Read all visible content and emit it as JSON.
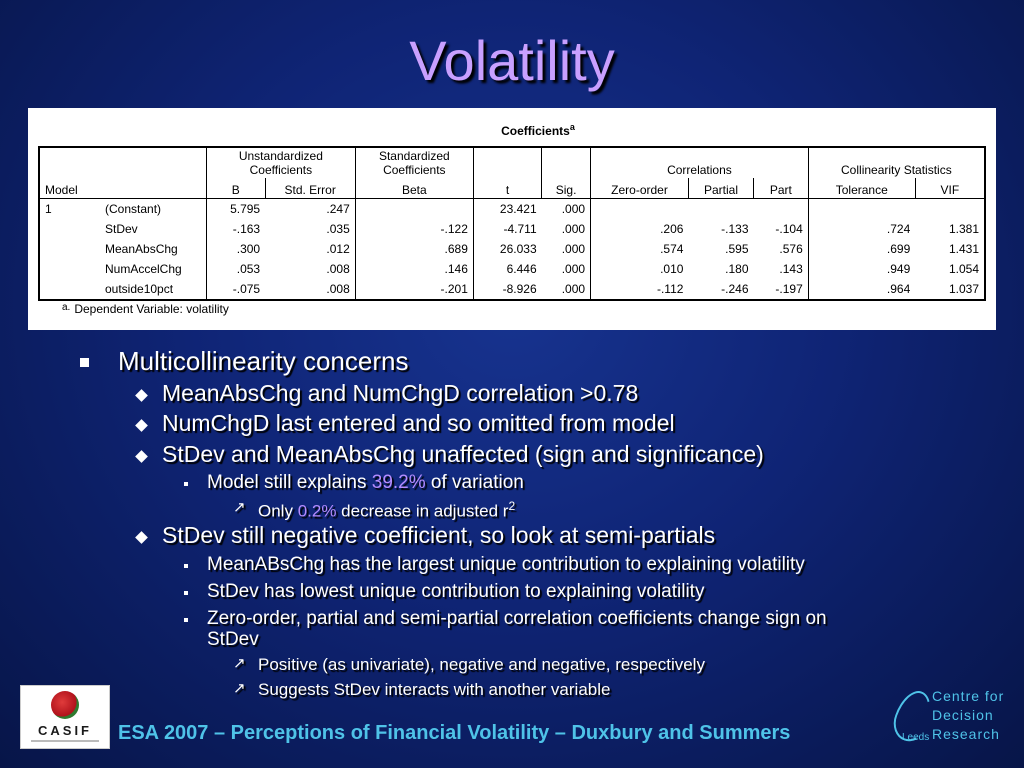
{
  "slide": {
    "title": "Volatility"
  },
  "table": {
    "caption": "Coefficients",
    "caption_sup": "a",
    "group_headers": {
      "unstandardized": [
        "Unstandardized",
        "Coefficients"
      ],
      "standardized": [
        "Standardized",
        "Coefficients"
      ],
      "correlations": "Correlations",
      "collinearity": "Collinearity Statistics"
    },
    "columns": [
      "Model",
      "B",
      "Std. Error",
      "Beta",
      "t",
      "Sig.",
      "Zero-order",
      "Partial",
      "Part",
      "Tolerance",
      "VIF"
    ],
    "rows": [
      {
        "model": "1",
        "var": "(Constant)",
        "B": "5.795",
        "se": ".247",
        "beta": "",
        "t": "23.421",
        "sig": ".000",
        "zero": "",
        "partial": "",
        "part": "",
        "tol": "",
        "vif": ""
      },
      {
        "model": "",
        "var": "StDev",
        "B": "-.163",
        "se": ".035",
        "beta": "-.122",
        "t": "-4.711",
        "sig": ".000",
        "zero": ".206",
        "partial": "-.133",
        "part": "-.104",
        "tol": ".724",
        "vif": "1.381"
      },
      {
        "model": "",
        "var": "MeanAbsChg",
        "B": ".300",
        "se": ".012",
        "beta": ".689",
        "t": "26.033",
        "sig": ".000",
        "zero": ".574",
        "partial": ".595",
        "part": ".576",
        "tol": ".699",
        "vif": "1.431"
      },
      {
        "model": "",
        "var": "NumAccelChg",
        "B": ".053",
        "se": ".008",
        "beta": ".146",
        "t": "6.446",
        "sig": ".000",
        "zero": ".010",
        "partial": ".180",
        "part": ".143",
        "tol": ".949",
        "vif": "1.054"
      },
      {
        "model": "",
        "var": "outside10pct",
        "B": "-.075",
        "se": ".008",
        "beta": "-.201",
        "t": "-8.926",
        "sig": ".000",
        "zero": "-.112",
        "partial": "-.246",
        "part": "-.197",
        "tol": ".964",
        "vif": "1.037"
      }
    ],
    "footnote_marker": "a.",
    "footnote": "Dependent Variable: volatility"
  },
  "bullets": {
    "b1": "Multicollinearity concerns",
    "b1_1": "MeanAbsChg and NumChgD correlation >0.78",
    "b1_2": "NumChgD last entered and so omitted from model",
    "b1_3": "StDev and MeanAbsChg unaffected (sign and significance)",
    "b1_3_1_pre": "Model still explains ",
    "b1_3_1_hl": "39.2%",
    "b1_3_1_post": " of variation",
    "b1_3_1_1_pre": "Only ",
    "b1_3_1_1_hl": "0.2%",
    "b1_3_1_1_post": " decrease in adjusted r",
    "b1_3_1_1_sup": "2",
    "b1_4": "StDev still negative coefficient, so look at semi-partials",
    "b1_4_1": "MeanABsChg has the largest unique contribution to explaining volatility",
    "b1_4_2": "StDev has lowest unique contribution to explaining volatility",
    "b1_4_3a": "Zero-order, partial and semi-partial correlation coefficients change sign on",
    "b1_4_3b": "StDev",
    "b1_4_3_1": "Positive (as univariate), negative and negative, respectively",
    "b1_4_3_2": "Suggests StDev interacts with another variable"
  },
  "footer": {
    "text": "ESA 2007 – Perceptions of Financial Volatility – Duxbury and Summers",
    "casif_logo_text": "CASIF",
    "cdr_logo": [
      "Centre for",
      "Decision",
      "Research"
    ],
    "cdr_leeds": "Leeds"
  },
  "colors": {
    "background": "#0f2475",
    "title": "#c9a0ff",
    "highlight": "#b58cff",
    "footer": "#4fc3e8"
  },
  "icons": {
    "level1": "square-bullet",
    "level2": "diamond-bullet",
    "level3": "small-square-bullet",
    "level4": "arrow-up-right-bullet"
  }
}
